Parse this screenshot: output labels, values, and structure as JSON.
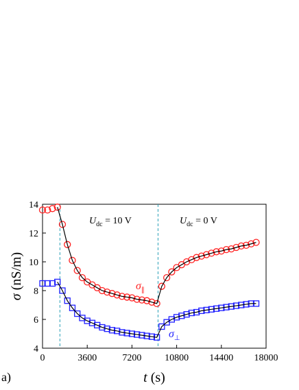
{
  "chart_data": {
    "type": "scatter",
    "xlabel": {
      "symbol": "t",
      "unit": "(s)"
    },
    "ylabel": {
      "symbol": "σ",
      "unit": "(nS/m)"
    },
    "panel_label": "a)",
    "xlim": [
      0,
      18000
    ],
    "xticks": [
      0,
      3600,
      7200,
      10800,
      14400,
      18000
    ],
    "ylim": [
      4,
      14
    ],
    "yticks": [
      4,
      6,
      8,
      10,
      12,
      14
    ],
    "vlines": [
      1400,
      9300
    ],
    "vline_color": "#2aa0b8",
    "fit_color": "#000000",
    "x": [
      0,
      400,
      800,
      1200,
      1600,
      2000,
      2400,
      2800,
      3200,
      3600,
      4000,
      4400,
      4800,
      5200,
      5600,
      6000,
      6400,
      6800,
      7200,
      7600,
      8000,
      8400,
      8800,
      9200,
      9600,
      10000,
      10400,
      10800,
      11200,
      11600,
      12000,
      12400,
      12800,
      13200,
      13600,
      14000,
      14400,
      14800,
      15200,
      15600,
      16000,
      16400,
      16800,
      17200
    ],
    "series": [
      {
        "color": "#ff2020",
        "marker": "circle",
        "values": [
          13.6,
          13.6,
          13.7,
          13.8,
          12.6,
          11.2,
          10.1,
          9.4,
          8.9,
          8.6,
          8.4,
          8.2,
          8.0,
          7.9,
          7.8,
          7.7,
          7.6,
          7.55,
          7.5,
          7.4,
          7.35,
          7.3,
          7.2,
          7.1,
          8.3,
          8.9,
          9.3,
          9.6,
          9.8,
          10.0,
          10.15,
          10.3,
          10.4,
          10.5,
          10.6,
          10.7,
          10.75,
          10.85,
          10.9,
          11.0,
          11.1,
          11.15,
          11.25,
          11.35
        ]
      },
      {
        "color": "#2020ff",
        "marker": "square",
        "values": [
          8.5,
          8.5,
          8.5,
          8.6,
          8.0,
          7.3,
          6.8,
          6.4,
          6.1,
          5.9,
          5.75,
          5.6,
          5.45,
          5.35,
          5.25,
          5.2,
          5.1,
          5.05,
          5.0,
          4.95,
          4.9,
          4.85,
          4.8,
          4.75,
          5.5,
          5.8,
          6.0,
          6.15,
          6.25,
          6.35,
          6.45,
          6.5,
          6.6,
          6.65,
          6.7,
          6.75,
          6.8,
          6.85,
          6.9,
          6.95,
          7.0,
          7.05,
          7.1,
          7.1
        ]
      }
    ],
    "annotations": [
      {
        "symbol": "U",
        "sub": "dc",
        "rest": " = 10 V"
      },
      {
        "symbol": "U",
        "sub": "dc",
        "rest": " = 0 V"
      },
      {
        "symbol": "σ",
        "sub": "∥"
      },
      {
        "symbol": "σ",
        "sub": "⊥"
      }
    ]
  }
}
